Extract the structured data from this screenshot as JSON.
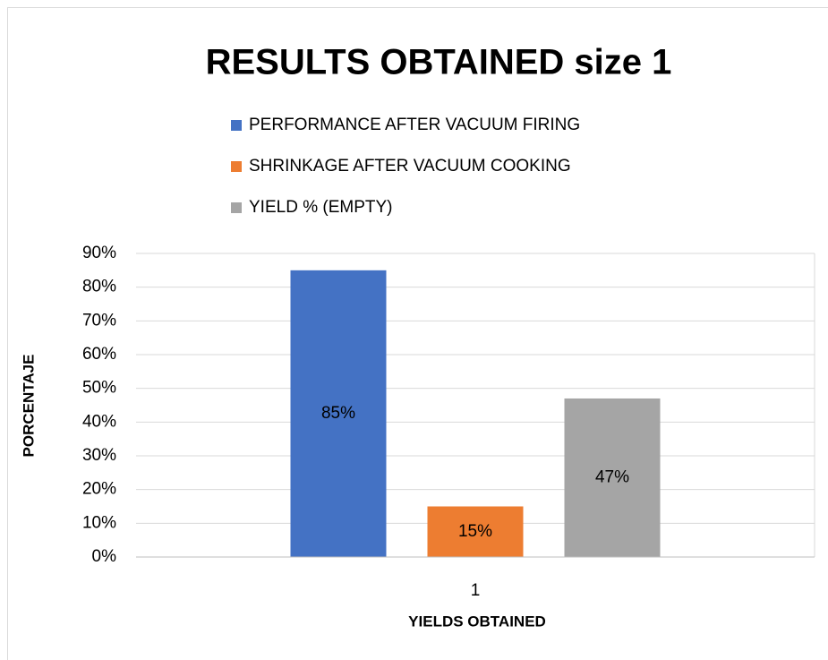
{
  "chart_data": {
    "type": "bar",
    "title": "RESULTS OBTAINED size 1",
    "x_label": "YIELDS OBTAINED",
    "y_label": "PORCENTAJE",
    "categories": [
      "1"
    ],
    "series": [
      {
        "name": "PERFORMANCE AFTER VACUUM FIRING",
        "color": "#4472c4",
        "values": [
          85
        ],
        "value_labels": [
          "85%"
        ]
      },
      {
        "name": "SHRINKAGE AFTER VACUUM COOKING",
        "color": "#ed7d31",
        "values": [
          15
        ],
        "value_labels": [
          "15%"
        ]
      },
      {
        "name": "YIELD % (EMPTY)",
        "color": "#a5a5a5",
        "values": [
          47
        ],
        "value_labels": [
          "47%"
        ]
      }
    ],
    "ylim": [
      0,
      90
    ],
    "yticks": [
      {
        "value": 0,
        "label": "0%"
      },
      {
        "value": 10,
        "label": "10%"
      },
      {
        "value": 20,
        "label": "20%"
      },
      {
        "value": 30,
        "label": "30%"
      },
      {
        "value": 40,
        "label": "40%"
      },
      {
        "value": 50,
        "label": "50%"
      },
      {
        "value": 60,
        "label": "60%"
      },
      {
        "value": 70,
        "label": "70%"
      },
      {
        "value": 80,
        "label": "80%"
      },
      {
        "value": 90,
        "label": "90%"
      }
    ],
    "grid": true,
    "legend": "top"
  }
}
